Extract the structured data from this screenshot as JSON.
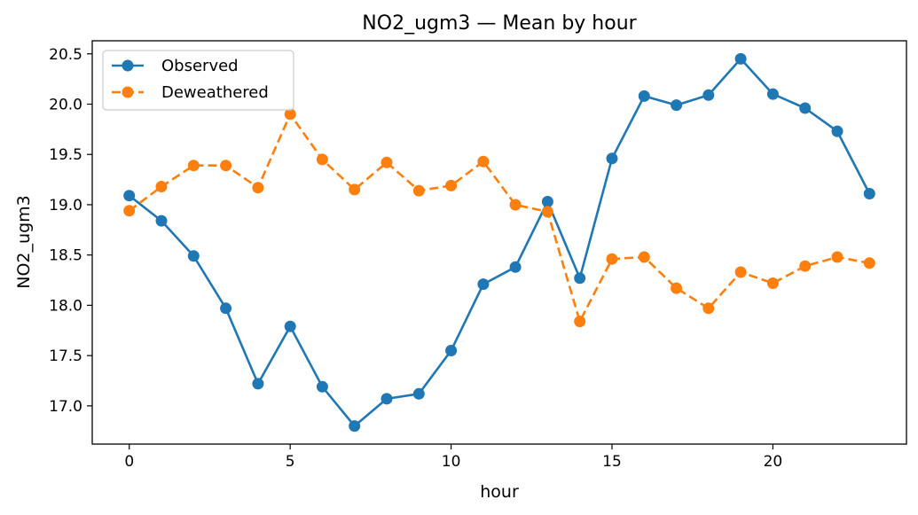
{
  "chart_data": {
    "type": "line",
    "title": "NO2_ugm3 — Mean by hour",
    "xlabel": "hour",
    "ylabel": "NO2_ugm3",
    "xlim": [
      -1.15,
      24.15
    ],
    "ylim": [
      16.62,
      20.63
    ],
    "xticks": [
      0,
      5,
      10,
      15,
      20
    ],
    "yticks": [
      17.0,
      17.5,
      18.0,
      18.5,
      19.0,
      19.5,
      20.0,
      20.5
    ],
    "grid": false,
    "legend_position": "upper-left",
    "x": [
      0,
      1,
      2,
      3,
      4,
      5,
      6,
      7,
      8,
      9,
      10,
      11,
      12,
      13,
      14,
      15,
      16,
      17,
      18,
      19,
      20,
      21,
      22,
      23
    ],
    "series": [
      {
        "name": "Observed",
        "color": "#1f77b4",
        "linestyle": "solid",
        "marker": "circle",
        "values": [
          19.09,
          18.84,
          18.49,
          17.97,
          17.22,
          17.79,
          17.19,
          16.8,
          17.07,
          17.12,
          17.55,
          18.21,
          18.38,
          19.03,
          18.27,
          19.46,
          20.08,
          19.99,
          20.09,
          20.45,
          20.1,
          19.96,
          19.73,
          19.11
        ]
      },
      {
        "name": "Deweathered",
        "color": "#ff7f0e",
        "linestyle": "dashed",
        "marker": "circle",
        "values": [
          18.94,
          19.18,
          19.39,
          19.39,
          19.17,
          19.9,
          19.45,
          19.15,
          19.42,
          19.14,
          19.19,
          19.43,
          19.0,
          18.93,
          17.84,
          18.46,
          18.48,
          18.17,
          17.97,
          18.33,
          18.22,
          18.39,
          18.48,
          18.42
        ]
      }
    ]
  }
}
